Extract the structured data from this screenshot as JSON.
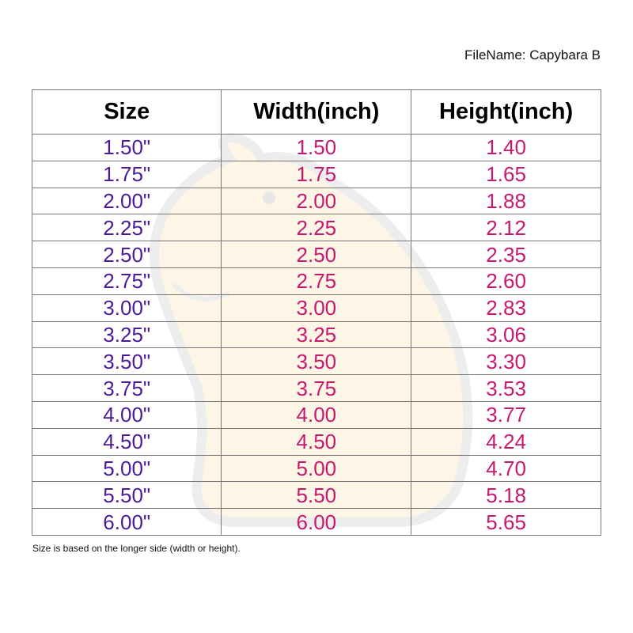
{
  "file_name": "FileName: Capybara B",
  "headers": [
    "Size",
    "Width(inch)",
    "Height(inch)"
  ],
  "rows": [
    [
      "1.50\"",
      "1.50",
      "1.40"
    ],
    [
      "1.75\"",
      "1.75",
      "1.65"
    ],
    [
      "2.00\"",
      "2.00",
      "1.88"
    ],
    [
      "2.25\"",
      "2.25",
      "2.12"
    ],
    [
      "2.50\"",
      "2.50",
      "2.35"
    ],
    [
      "2.75\"",
      "2.75",
      "2.60"
    ],
    [
      "3.00\"",
      "3.00",
      "2.83"
    ],
    [
      "3.25\"",
      "3.25",
      "3.06"
    ],
    [
      "3.50\"",
      "3.50",
      "3.30"
    ],
    [
      "3.75\"",
      "3.75",
      "3.53"
    ],
    [
      "4.00\"",
      "4.00",
      "3.77"
    ],
    [
      "4.50\"",
      "4.50",
      "4.24"
    ],
    [
      "5.00\"",
      "5.00",
      "4.70"
    ],
    [
      "5.50\"",
      "5.50",
      "5.18"
    ],
    [
      "6.00\"",
      "6.00",
      "5.65"
    ]
  ],
  "footnote": "Size is based on the longer side (width or height).",
  "colors": {
    "size": "#4a1a9a",
    "dimension": "#c8186e"
  },
  "watermark_icon": "capybara-illustration"
}
